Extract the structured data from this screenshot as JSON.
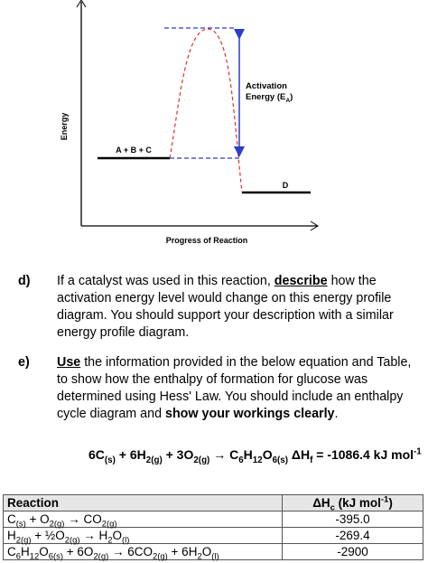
{
  "diagram": {
    "y_axis_label": "Energy",
    "x_axis_label": "Progress of Reaction",
    "reactants": "A + B + C",
    "products": "D",
    "activation_label": [
      {
        "text": "Activation"
      }
    ],
    "activation_label_2": [
      {
        "text": "Energy (E"
      },
      {
        "sub": "A"
      },
      {
        "text": ")"
      }
    ]
  },
  "questions": [
    {
      "label": "d)",
      "runs": [
        {
          "text": "If a catalyst was used in this reaction, "
        },
        {
          "emph": "describe"
        },
        {
          "text": " how the activation energy level would change on this energy profile diagram. You should support your description with a similar energy profile diagram."
        }
      ]
    },
    {
      "label": "e)",
      "runs": [
        {
          "emph": "Use"
        },
        {
          "text": " the information provided in the below equation and Table, to show how the enthalpy of formation for glucose was determined using Hess' Law. You should include an enthalpy cycle diagram and "
        },
        {
          "bold": "show your workings clearly"
        },
        {
          "text": "."
        }
      ]
    }
  ],
  "equation": [
    {
      "text": "6C"
    },
    {
      "sub": "(s)"
    },
    {
      "text": " + 6H"
    },
    {
      "sub": "2(g)"
    },
    {
      "text": " + 3O"
    },
    {
      "sub": "2(g)"
    },
    {
      "text": " → C"
    },
    {
      "sub": "6"
    },
    {
      "text": "H"
    },
    {
      "sub": "12"
    },
    {
      "text": "O"
    },
    {
      "sub": "6(s)"
    },
    {
      "text": " ΔH"
    },
    {
      "sub": "f"
    },
    {
      "text": " = -1086.4 kJ mol"
    },
    {
      "sup": "-1"
    }
  ],
  "table": {
    "header": [
      [
        {
          "text": "Reaction"
        }
      ],
      [
        {
          "text": "ΔH"
        },
        {
          "sub": "c"
        },
        {
          "text": " (kJ mol"
        },
        {
          "sup": "-1"
        },
        {
          "text": ")"
        }
      ]
    ],
    "rows": [
      [
        [
          {
            "text": "C"
          },
          {
            "sub": "(s)"
          },
          {
            "text": " + O"
          },
          {
            "sub": "2(g)"
          },
          {
            "text": " → CO"
          },
          {
            "sub": "2(g)"
          }
        ],
        "-395.0"
      ],
      [
        [
          {
            "text": "H"
          },
          {
            "sub": "2(g)"
          },
          {
            "text": " + ½O"
          },
          {
            "sub": "2(g)"
          },
          {
            "text": " → H"
          },
          {
            "sub": "2"
          },
          {
            "text": "O"
          },
          {
            "sub": "(l)"
          }
        ],
        "-269.4"
      ],
      [
        [
          {
            "text": "C"
          },
          {
            "sub": "6"
          },
          {
            "text": "H"
          },
          {
            "sub": "12"
          },
          {
            "text": "O"
          },
          {
            "sub": "6(s)"
          },
          {
            "text": " + 6O"
          },
          {
            "sub": "2(g)"
          },
          {
            "text": " → 6CO"
          },
          {
            "sub": "2(g)"
          },
          {
            "text": " + 6H"
          },
          {
            "sub": "2"
          },
          {
            "text": "O"
          },
          {
            "sub": "(l)"
          }
        ],
        "-2900"
      ]
    ]
  }
}
